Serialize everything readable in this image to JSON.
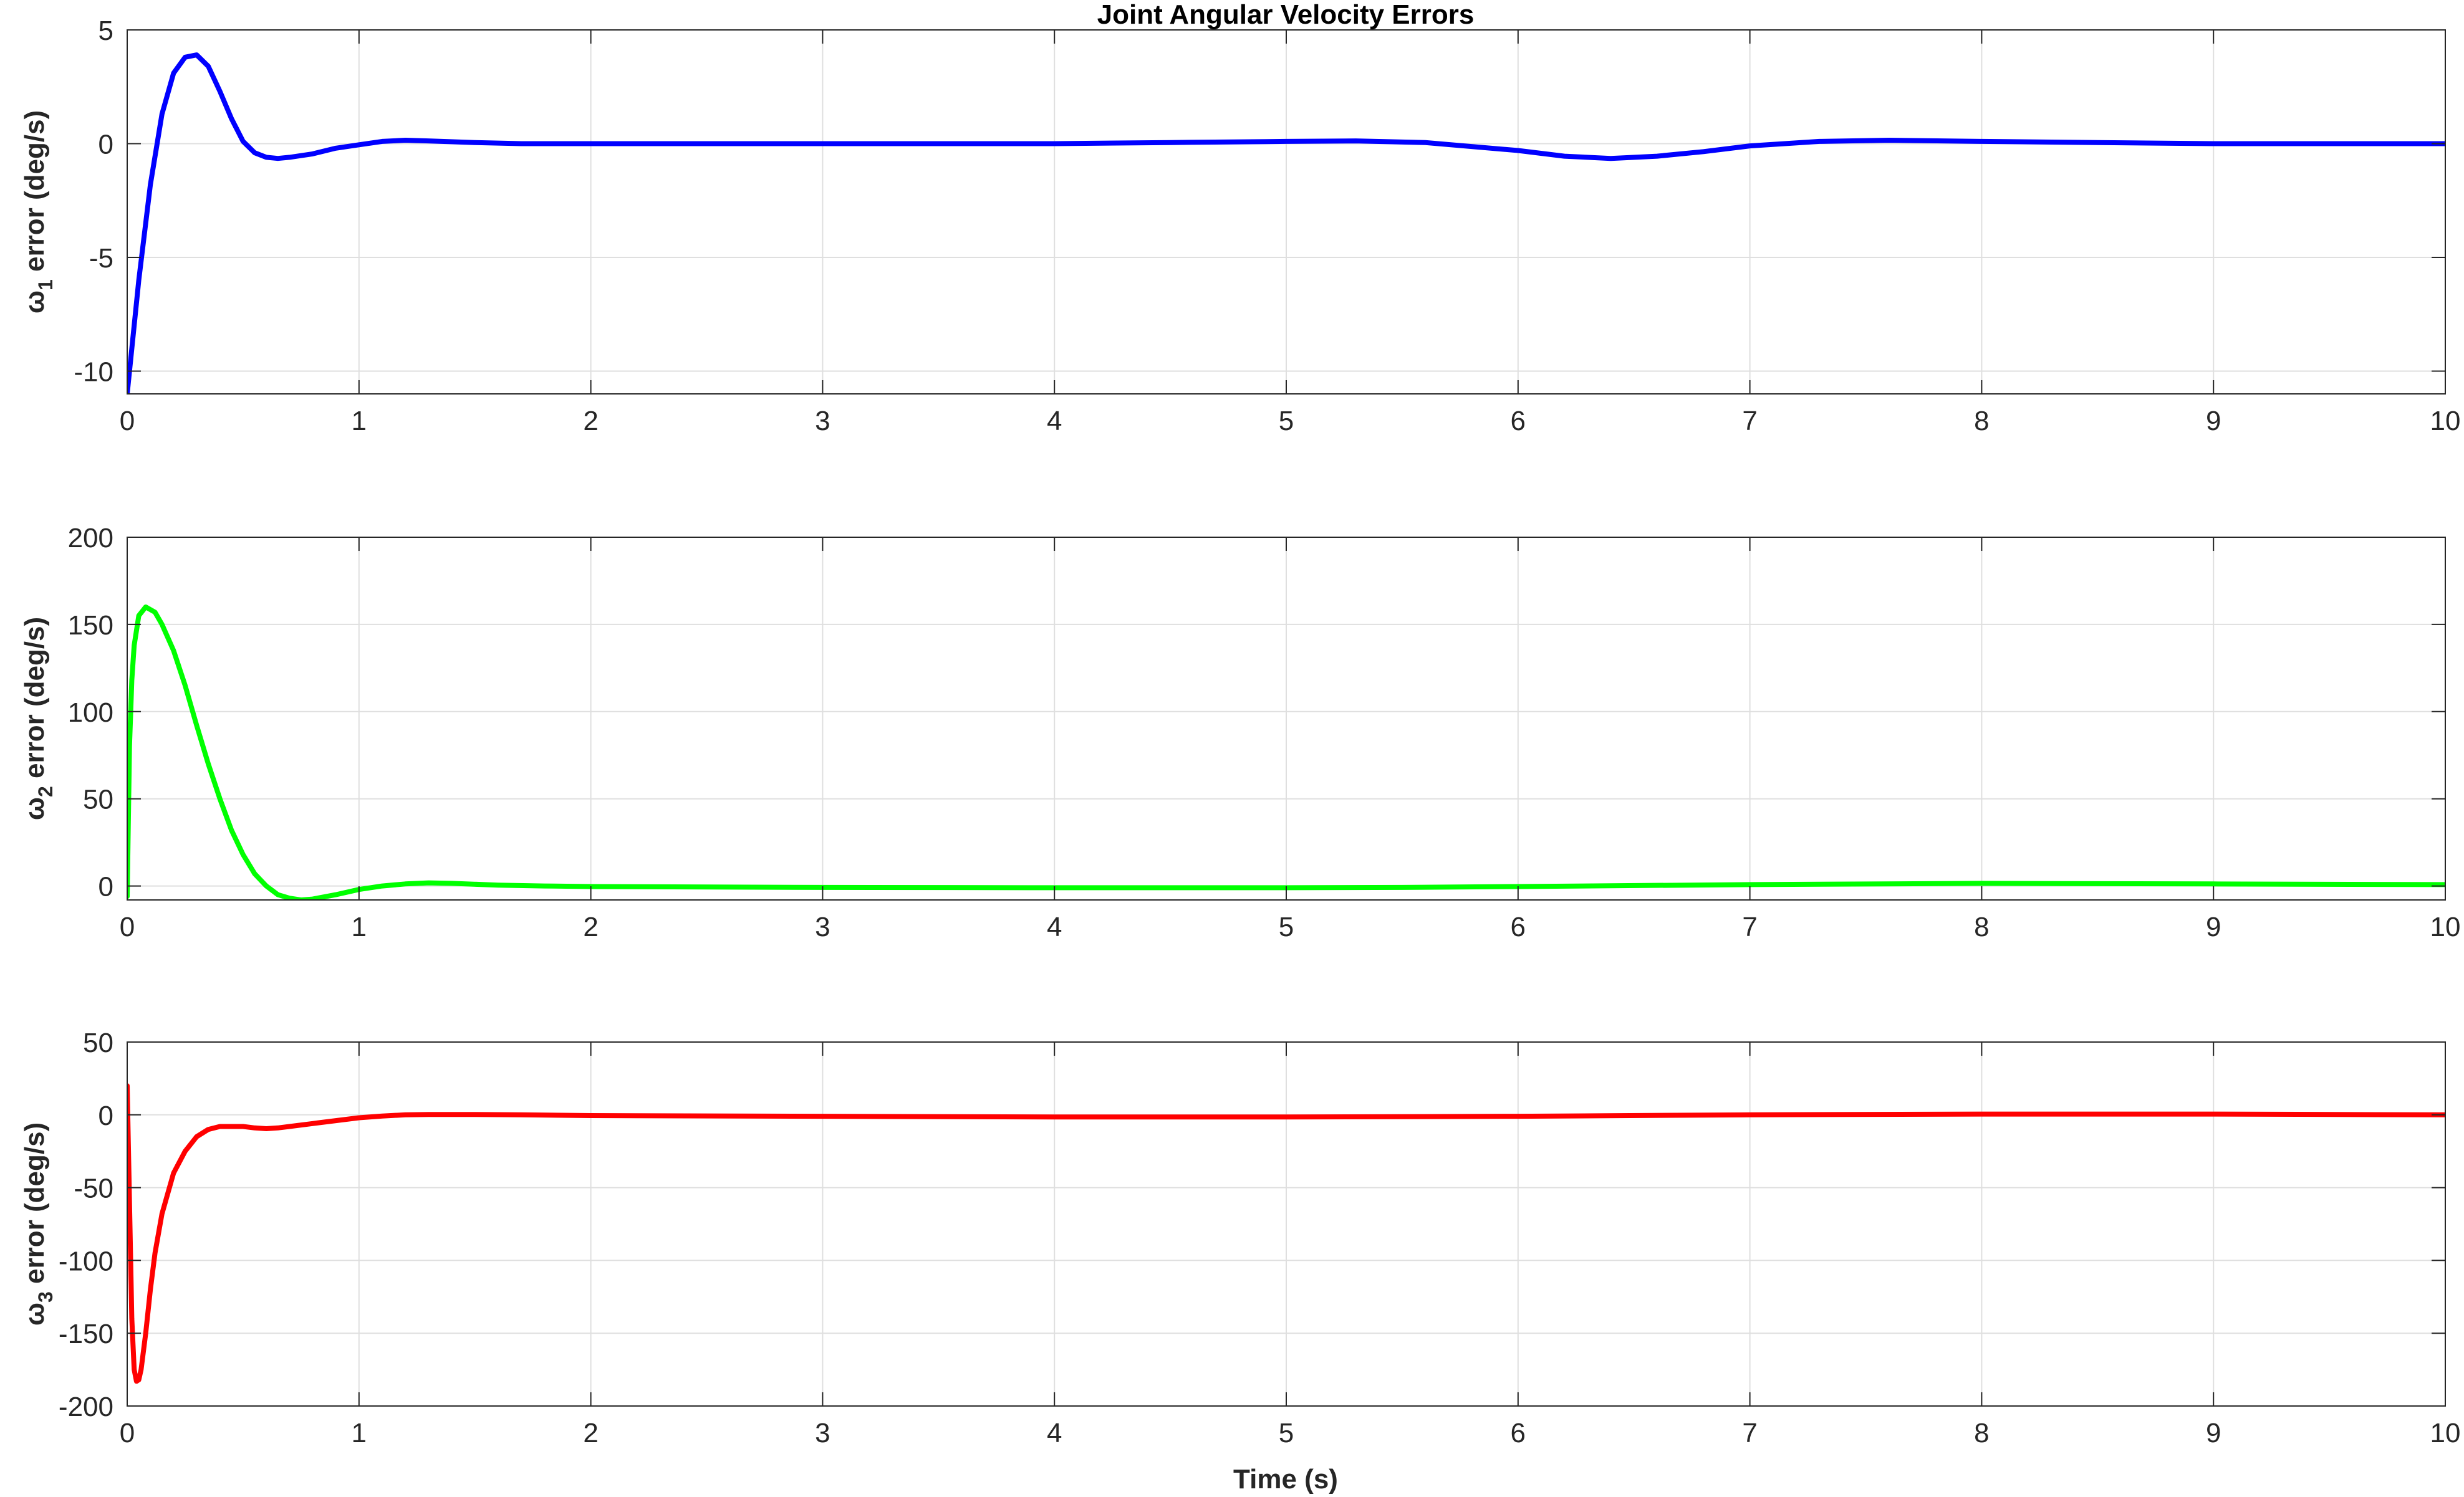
{
  "figure": {
    "title": "Joint Angular Velocity Errors",
    "xlabel": "Time (s)"
  },
  "chart_data": [
    {
      "type": "line",
      "title": "Joint Angular Velocity Errors",
      "xlabel": "",
      "ylabel": {
        "symbol": "ω",
        "sub": "1",
        "rest": " error (deg/s)"
      },
      "xlim": [
        0,
        10
      ],
      "ylim": [
        -11,
        5
      ],
      "xticks": [
        0,
        1,
        2,
        3,
        4,
        5,
        6,
        7,
        8,
        9,
        10
      ],
      "yticks": [
        -10,
        -5,
        0,
        5
      ],
      "grid": true,
      "series": [
        {
          "color": "#0000FF",
          "x": [
            0,
            0.05,
            0.1,
            0.15,
            0.2,
            0.25,
            0.3,
            0.35,
            0.4,
            0.45,
            0.5,
            0.55,
            0.6,
            0.65,
            0.7,
            0.8,
            0.9,
            1.0,
            1.1,
            1.2,
            1.3,
            1.5,
            1.7,
            2.0,
            3.0,
            4.0,
            4.5,
            5.0,
            5.3,
            5.6,
            6.0,
            6.2,
            6.4,
            6.6,
            6.8,
            7.0,
            7.3,
            7.6,
            8.0,
            8.5,
            9.0,
            10.0
          ],
          "y": [
            -11.0,
            -6.0,
            -1.8,
            1.3,
            3.1,
            3.8,
            3.9,
            3.4,
            2.3,
            1.1,
            0.1,
            -0.4,
            -0.6,
            -0.65,
            -0.6,
            -0.45,
            -0.2,
            -0.05,
            0.1,
            0.15,
            0.12,
            0.05,
            0.0,
            0.0,
            0.0,
            0.0,
            0.05,
            0.1,
            0.12,
            0.05,
            -0.3,
            -0.55,
            -0.65,
            -0.55,
            -0.35,
            -0.1,
            0.1,
            0.15,
            0.1,
            0.05,
            0.0,
            0.0
          ]
        }
      ]
    },
    {
      "type": "line",
      "xlabel": "",
      "ylabel": {
        "symbol": "ω",
        "sub": "2",
        "rest": " error (deg/s)"
      },
      "xlim": [
        0,
        10
      ],
      "ylim": [
        -8,
        200
      ],
      "xticks": [
        0,
        1,
        2,
        3,
        4,
        5,
        6,
        7,
        8,
        9,
        10
      ],
      "yticks": [
        0,
        50,
        100,
        150,
        200
      ],
      "grid": true,
      "series": [
        {
          "color": "#00FF00",
          "x": [
            0,
            0.01,
            0.02,
            0.03,
            0.05,
            0.08,
            0.12,
            0.15,
            0.2,
            0.25,
            0.3,
            0.35,
            0.4,
            0.45,
            0.5,
            0.55,
            0.6,
            0.65,
            0.7,
            0.75,
            0.8,
            0.9,
            1.0,
            1.1,
            1.2,
            1.3,
            1.4,
            1.6,
            1.8,
            2.0,
            3.0,
            4.0,
            5.0,
            5.5,
            6.0,
            7.0,
            8.0,
            9.0,
            10.0
          ],
          "y": [
            -6,
            80,
            118,
            138,
            155,
            160,
            157,
            150,
            135,
            115,
            92,
            70,
            50,
            32,
            18,
            7,
            0,
            -5,
            -7,
            -8,
            -7.5,
            -5,
            -2,
            0,
            1.2,
            1.8,
            1.5,
            0.5,
            0,
            -0.3,
            -0.8,
            -1.0,
            -1.0,
            -0.8,
            -0.3,
            0.8,
            1.5,
            1.2,
            0.8
          ]
        }
      ]
    },
    {
      "type": "line",
      "xlabel": "Time (s)",
      "ylabel": {
        "symbol": "ω",
        "sub": "3",
        "rest": " error (deg/s)"
      },
      "xlim": [
        0,
        10
      ],
      "ylim": [
        -200,
        50
      ],
      "xticks": [
        0,
        1,
        2,
        3,
        4,
        5,
        6,
        7,
        8,
        9,
        10
      ],
      "yticks": [
        -200,
        -150,
        -100,
        -50,
        0,
        50
      ],
      "grid": true,
      "series": [
        {
          "color": "#FF0000",
          "x": [
            0,
            0.01,
            0.02,
            0.03,
            0.04,
            0.05,
            0.06,
            0.08,
            0.1,
            0.12,
            0.15,
            0.2,
            0.25,
            0.3,
            0.35,
            0.4,
            0.45,
            0.5,
            0.55,
            0.6,
            0.65,
            0.7,
            0.8,
            0.9,
            1.0,
            1.1,
            1.2,
            1.3,
            1.5,
            1.7,
            2.0,
            3.0,
            4.0,
            5.0,
            6.0,
            7.0,
            8.0,
            9.0,
            10.0
          ],
          "y": [
            20,
            -60,
            -140,
            -175,
            -183,
            -182,
            -175,
            -150,
            -120,
            -95,
            -68,
            -40,
            -25,
            -15,
            -10,
            -8,
            -8,
            -8,
            -9,
            -9.5,
            -9,
            -8,
            -6,
            -4,
            -2,
            -0.8,
            0,
            0.2,
            0.2,
            0,
            -0.5,
            -1,
            -1.5,
            -1.5,
            -1,
            0,
            0.5,
            0.5,
            0
          ]
        }
      ]
    }
  ]
}
